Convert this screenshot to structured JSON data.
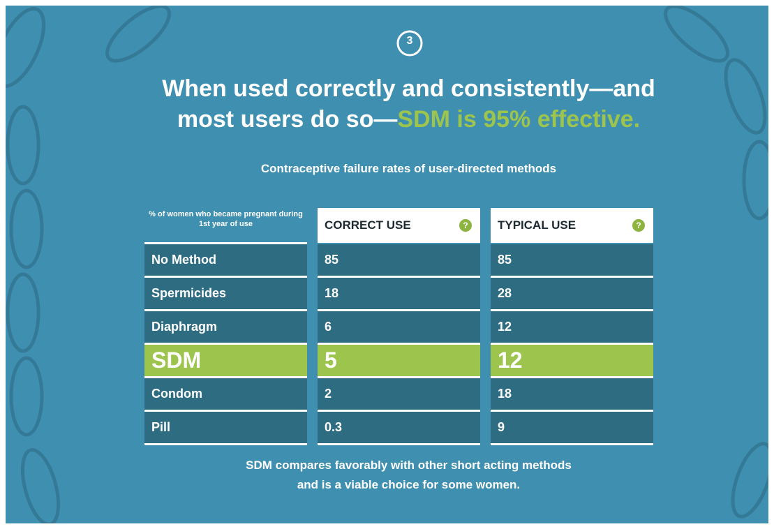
{
  "step": "3",
  "header": {
    "title_lines": [
      "When used correctly and consistently—and",
      "most users do so—"
    ],
    "title_highlight": "SDM is 95% effective."
  },
  "subtitle": "Contraceptive failure rates of user-directed methods",
  "table": {
    "row_header": "% of women who became pregnant during 1st year of use",
    "columns": [
      "CORRECT USE",
      "TYPICAL USE"
    ],
    "help_icon": "?",
    "rows": [
      [
        "No Method",
        85,
        85
      ],
      [
        "Spermicides",
        18,
        28
      ],
      [
        "Diaphragm",
        6,
        12
      ],
      [
        "SDM",
        5,
        12
      ],
      [
        "Condom",
        2,
        18
      ],
      [
        "Pill",
        0.3,
        9
      ]
    ],
    "highlight_row": 3
  },
  "footer": [
    "SDM compares favorably with other short acting methods",
    "and is a viable choice for some women."
  ]
}
